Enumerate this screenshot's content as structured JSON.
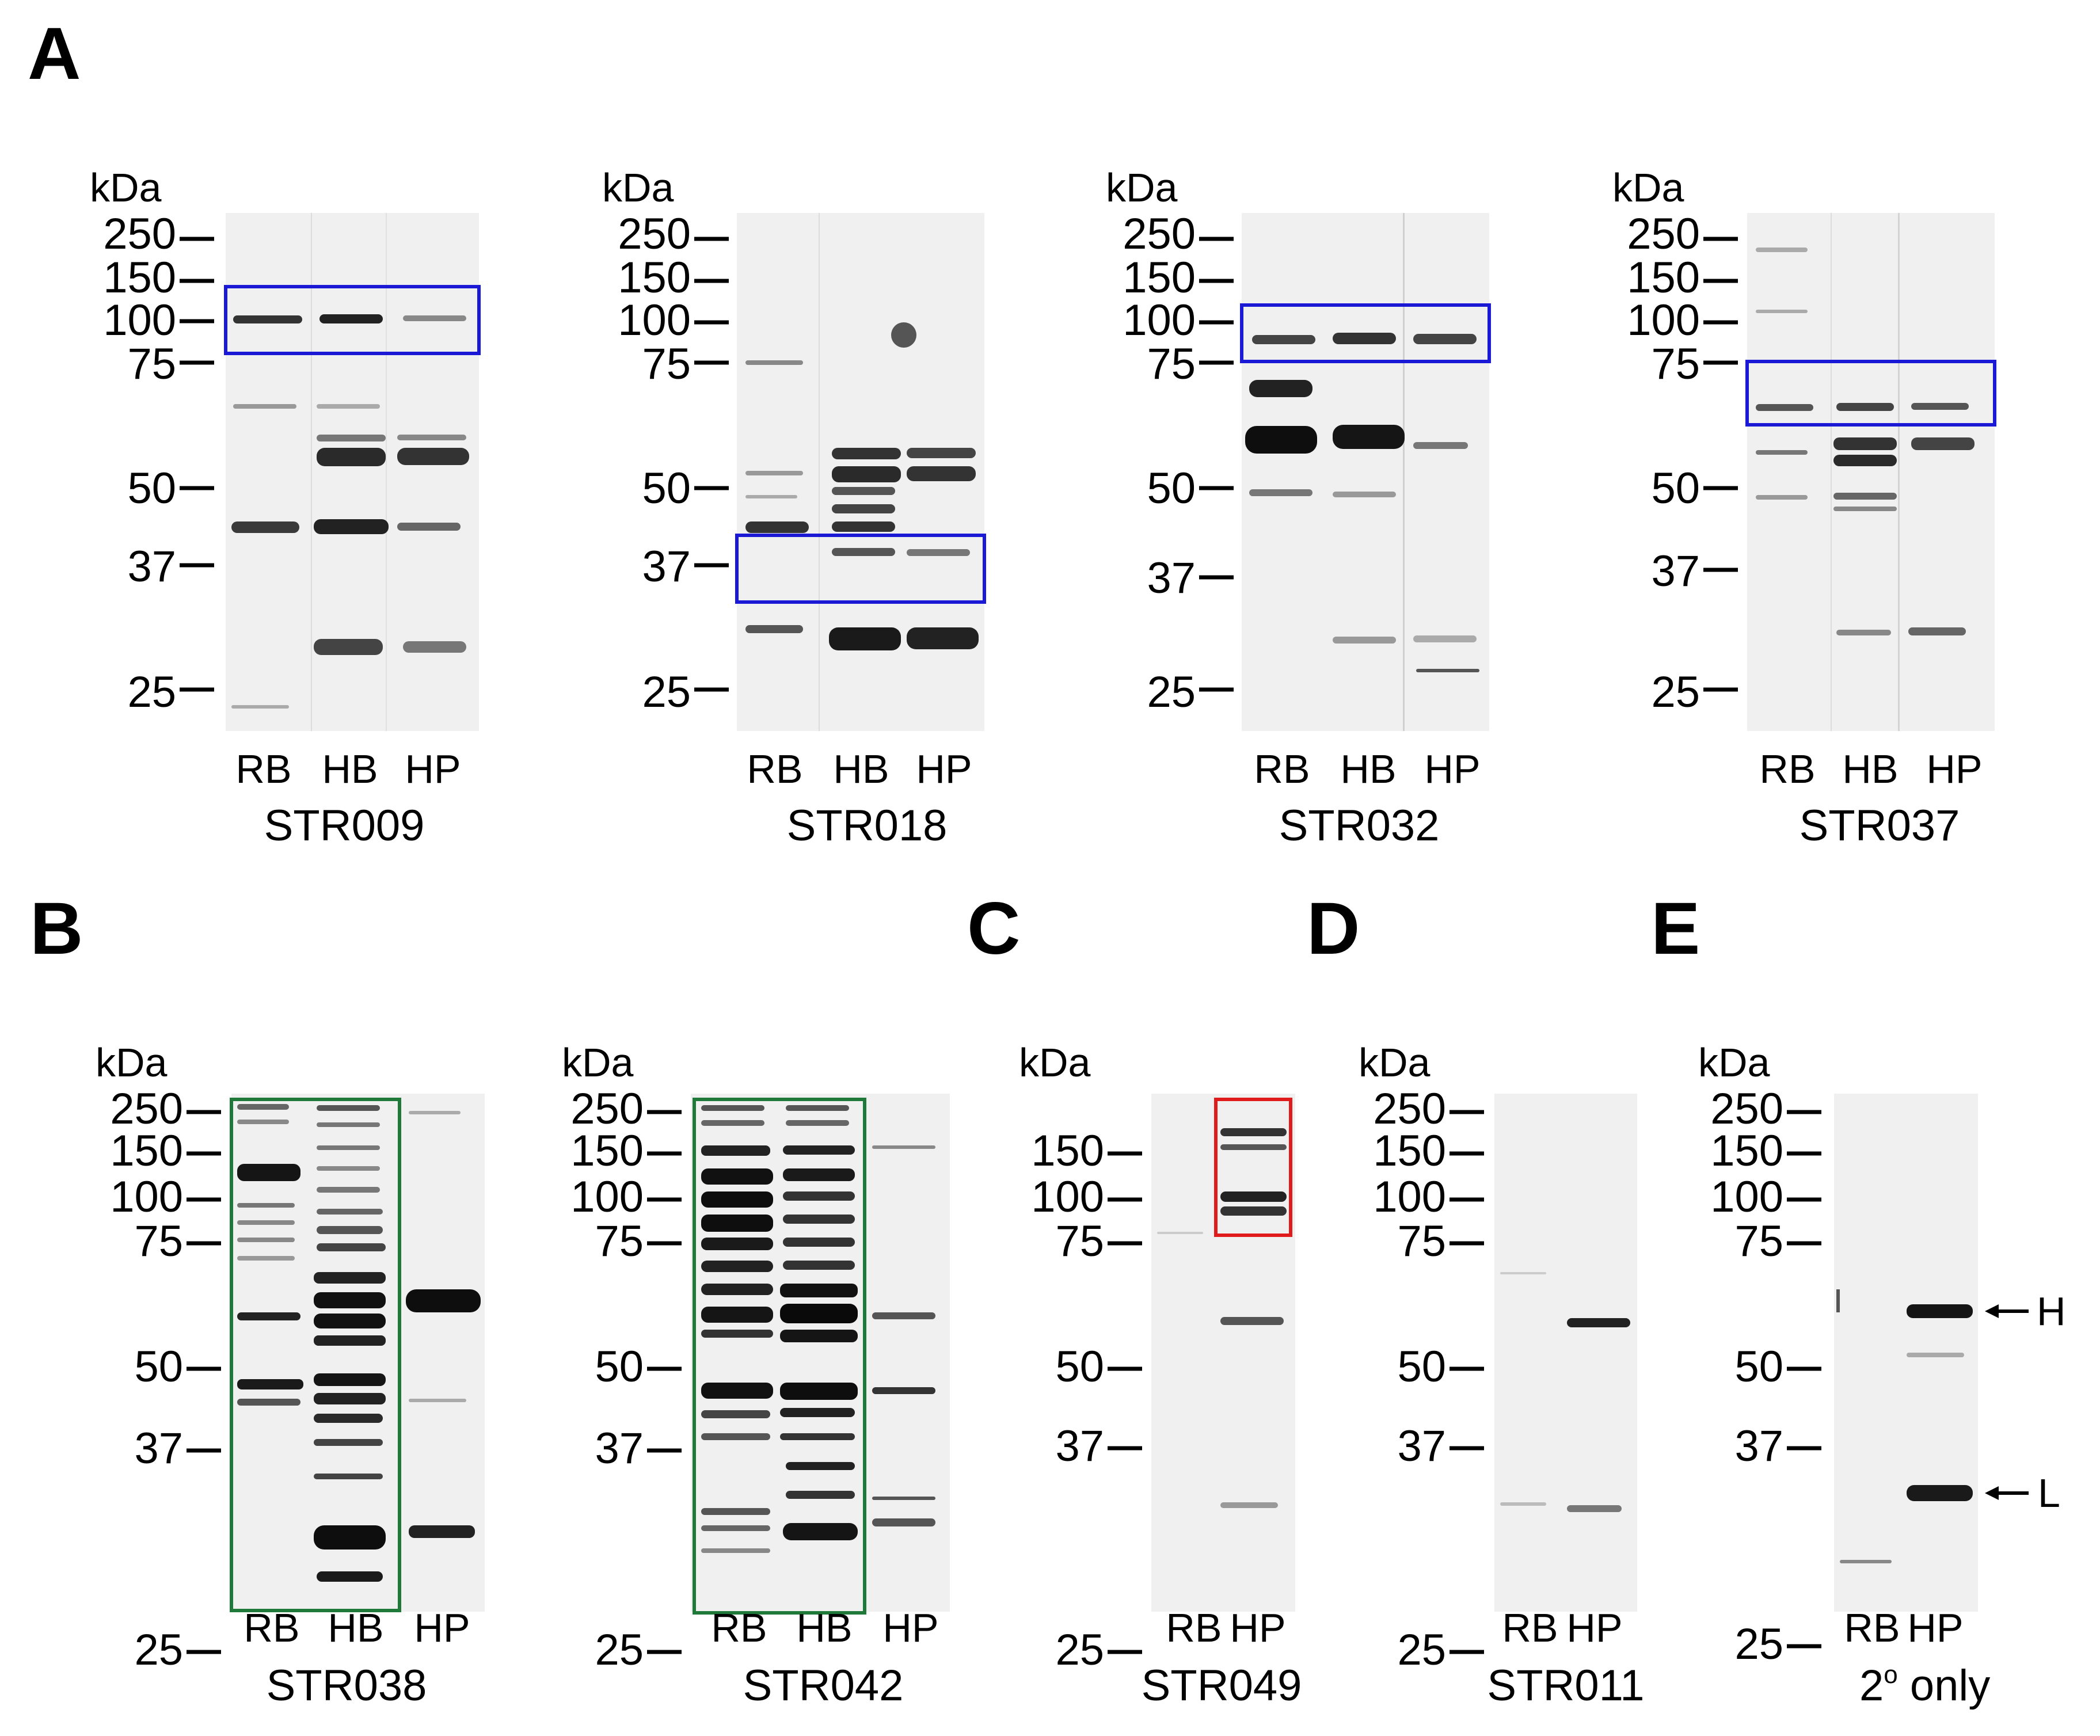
{
  "panels": {
    "A": "A",
    "B": "B",
    "C": "C",
    "D": "D",
    "E": "E"
  },
  "units": "kDa",
  "lanes3": [
    "RB",
    "HB",
    "HP"
  ],
  "lanes2": [
    "RB",
    "HP"
  ],
  "blots": {
    "str009": {
      "name": "STR009",
      "markers": [
        "250",
        "150",
        "100",
        "75",
        "50",
        "37",
        "25"
      ],
      "box_color": "#1a1ad6"
    },
    "str018": {
      "name": "STR018",
      "markers": [
        "250",
        "150",
        "100",
        "75",
        "50",
        "37",
        "25"
      ],
      "box_color": "#1a1ad6"
    },
    "str032": {
      "name": "STR032",
      "markers": [
        "250",
        "150",
        "100",
        "75",
        "50",
        "37",
        "25"
      ],
      "box_color": "#1a1ad6"
    },
    "str037": {
      "name": "STR037",
      "markers": [
        "250",
        "150",
        "100",
        "75",
        "50",
        "37",
        "25"
      ],
      "box_color": "#1a1ad6"
    },
    "str038": {
      "name": "STR038",
      "markers": [
        "250",
        "150",
        "100",
        "75",
        "50",
        "37",
        "25"
      ],
      "box_color": "#1f7a3a"
    },
    "str042": {
      "name": "STR042",
      "markers": [
        "250",
        "150",
        "100",
        "75",
        "50",
        "37",
        "25"
      ],
      "box_color": "#1f7a3a"
    },
    "str049": {
      "name": "STR049",
      "markers": [
        "150",
        "100",
        "75",
        "50",
        "37",
        "25"
      ],
      "box_color": "#e01b1b"
    },
    "str011": {
      "name": "STR011",
      "markers": [
        "250",
        "150",
        "100",
        "75",
        "50",
        "37",
        "25"
      ]
    },
    "secondary": {
      "name_main": "2",
      "name_sup": "o",
      "name_rest": " only",
      "markers": [
        "250",
        "150",
        "100",
        "75",
        "50",
        "37",
        "25"
      ],
      "arrow_h": "H",
      "arrow_l": "L"
    }
  }
}
